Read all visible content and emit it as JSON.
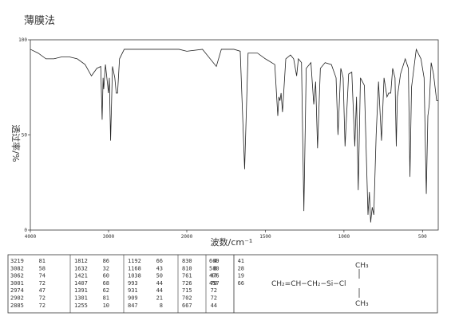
{
  "chart_data": {
    "type": "line",
    "title": "薄膜法",
    "xlabel": "波数/cm⁻¹",
    "ylabel": "透过率/%",
    "xlim": [
      4000,
      400
    ],
    "ylim": [
      0,
      100
    ],
    "xticks": [
      4000,
      3000,
      2000,
      1500,
      1000,
      500
    ],
    "yticks": [
      0,
      50,
      100
    ],
    "color": "#222",
    "x": [
      4000,
      3900,
      3800,
      3700,
      3600,
      3500,
      3400,
      3300,
      3219,
      3150,
      3100,
      3082,
      3070,
      3062,
      3040,
      3001,
      2990,
      2974,
      2950,
      2920,
      2902,
      2885,
      2860,
      2800,
      2700,
      2500,
      2300,
      2200,
      2100,
      2000,
      1900,
      1812,
      1780,
      1700,
      1660,
      1632,
      1610,
      1550,
      1500,
      1440,
      1421,
      1414,
      1407,
      1400,
      1391,
      1370,
      1340,
      1320,
      1301,
      1290,
      1270,
      1255,
      1240,
      1210,
      1192,
      1180,
      1168,
      1150,
      1120,
      1080,
      1050,
      1038,
      1020,
      1005,
      993,
      970,
      950,
      931,
      920,
      909,
      895,
      870,
      847,
      838,
      830,
      820,
      810,
      795,
      780,
      761,
      745,
      726,
      715,
      702,
      690,
      675,
      667,
      660,
      640,
      610,
      590,
      580,
      570,
      540,
      510,
      490,
      476,
      466,
      457,
      445,
      430,
      410,
      400
    ],
    "values": [
      95,
      93,
      90,
      90,
      91,
      91,
      90,
      87,
      81,
      85,
      86,
      58,
      80,
      74,
      87,
      72,
      80,
      47,
      86,
      80,
      72,
      72,
      90,
      95,
      95,
      95,
      95,
      95,
      95,
      94,
      95,
      86,
      95,
      95,
      94,
      32,
      93,
      93,
      90,
      87,
      60,
      70,
      68,
      72,
      62,
      90,
      92,
      90,
      81,
      90,
      88,
      10,
      85,
      88,
      66,
      78,
      43,
      85,
      88,
      87,
      80,
      50,
      85,
      80,
      44,
      82,
      83,
      44,
      70,
      21,
      80,
      76,
      8,
      20,
      4,
      12,
      8,
      50,
      78,
      47,
      80,
      70,
      72,
      72,
      85,
      80,
      44,
      70,
      82,
      90,
      85,
      28,
      75,
      95,
      90,
      80,
      19,
      60,
      66,
      88,
      82,
      68,
      68
    ]
  },
  "peak_table": {
    "columns": [
      [
        [
          3219,
          81
        ],
        [
          3082,
          58
        ],
        [
          3062,
          74
        ],
        [
          3001,
          72
        ],
        [
          2974,
          47
        ],
        [
          2902,
          72
        ],
        [
          2885,
          72
        ]
      ],
      [
        [
          1812,
          86
        ],
        [
          1632,
          32
        ],
        [
          1421,
          60
        ],
        [
          1407,
          68
        ],
        [
          1391,
          62
        ],
        [
          1301,
          81
        ],
        [
          1255,
          10
        ]
      ],
      [
        [
          1192,
          66
        ],
        [
          1168,
          43
        ],
        [
          1038,
          50
        ],
        [
          993,
          44
        ],
        [
          931,
          44
        ],
        [
          909,
          21
        ],
        [
          847,
          8
        ]
      ],
      [
        [
          830,
          4
        ],
        [
          810,
          8
        ],
        [
          761,
          47
        ],
        [
          726,
          70
        ],
        [
          715,
          72
        ],
        [
          702,
          72
        ],
        [
          667,
          44
        ]
      ],
      [
        [
          669,
          41
        ],
        [
          580,
          28
        ],
        [
          476,
          19
        ],
        [
          457,
          66
        ]
      ]
    ]
  },
  "structure": {
    "top": "CH₃",
    "chain": "CH₂=CH−CH₂−Si−Cl",
    "bottom": "CH₃"
  }
}
